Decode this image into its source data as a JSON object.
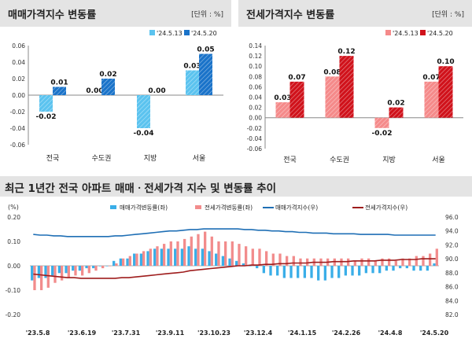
{
  "colors": {
    "sale_prev": "#5bc3ef",
    "sale_curr": "#1a73c9",
    "jeonse_prev": "#f58a8a",
    "jeonse_curr": "#d0121b",
    "ts_sale_bar": "#3aaee8",
    "ts_jeonse_bar": "#f28c8c",
    "ts_sale_line": "#1f6fb5",
    "ts_jeonse_line": "#9e1c1c",
    "panel_bg": "#e4e4e4"
  },
  "sale_panel": {
    "title": "매매가격지수 변동률",
    "unit": "[단위 : %]"
  },
  "jeonse_panel": {
    "title": "전세가격지수 변동률",
    "unit": "[단위 : %]"
  },
  "timeseries": {
    "title": "최근 1년간 전국 아파트 매매ㆍ전세가격 지수 및 변동률 추이",
    "left_unit": "(%)"
  },
  "chart_data": [
    {
      "type": "bar",
      "title": "매매가격지수 변동률",
      "categories": [
        "전국",
        "수도권",
        "지방",
        "서울"
      ],
      "series": [
        {
          "name": "'24.5.13",
          "values": [
            -0.02,
            0.0,
            -0.04,
            0.03
          ]
        },
        {
          "name": "'24.5.20",
          "values": [
            0.01,
            0.02,
            0.0,
            0.05
          ]
        }
      ],
      "data_labels": [
        [
          "-0.02",
          "0.00",
          "-0.04",
          "0.03"
        ],
        [
          "0.01",
          "0.02",
          "0.00",
          "0.05"
        ]
      ],
      "ylim": [
        -0.06,
        0.06
      ],
      "yticks": [
        "0.06",
        "0.04",
        "0.02",
        "0.00",
        "-0.02",
        "-0.04",
        "-0.06"
      ],
      "legend": "top-right",
      "grid": false
    },
    {
      "type": "bar",
      "title": "전세가격지수 변동률",
      "categories": [
        "전국",
        "수도권",
        "지방",
        "서울"
      ],
      "series": [
        {
          "name": "'24.5.13",
          "values": [
            0.03,
            0.08,
            -0.02,
            0.07
          ]
        },
        {
          "name": "'24.5.20",
          "values": [
            0.07,
            0.12,
            0.02,
            0.1
          ]
        }
      ],
      "data_labels": [
        [
          "0.03",
          "0.08",
          "-0.02",
          "0.07"
        ],
        [
          "0.07",
          "0.12",
          "0.02",
          "0.10"
        ]
      ],
      "ylim": [
        -0.06,
        0.14
      ],
      "yticks": [
        "0.14",
        "0.12",
        "0.10",
        "0.08",
        "0.06",
        "0.04",
        "0.02",
        "0.00",
        "-0.02",
        "-0.04",
        "-0.06"
      ],
      "legend": "top-right",
      "grid": false
    },
    {
      "type": "bar",
      "title": "최근 1년간 전국 아파트 매매ㆍ전세가격 지수 및 변동률 추이",
      "x_labels": [
        "'23.5.8",
        "'23.6.19",
        "'23.7.31",
        "'23.9.11",
        "'23.10.23",
        "'23.12.4",
        "'24.1.15",
        "'24.2.26",
        "'24.4.8",
        "'24.5.20"
      ],
      "left_axis": {
        "unit": "(%)",
        "ylim": [
          -0.2,
          0.2
        ],
        "ticks": [
          "0.20",
          "0.10",
          "0.00",
          "-0.10",
          "-0.20"
        ]
      },
      "right_axis": {
        "ylim": [
          82,
          96
        ],
        "ticks": [
          "96.0",
          "94.0",
          "92.0",
          "90.0",
          "88.0",
          "86.0",
          "84.0",
          "82.0"
        ]
      },
      "legend": [
        "매매가격변동률(좌)",
        "전세가격변동률(좌)",
        "매매가격지수(우)",
        "전세가격지수(우)"
      ],
      "series": [
        {
          "name": "매매가격변동률(좌)",
          "axis": "left",
          "kind": "bar",
          "values": [
            -0.06,
            -0.05,
            -0.05,
            -0.04,
            -0.03,
            -0.03,
            -0.02,
            -0.02,
            -0.01,
            -0.01,
            0.0,
            0.0,
            0.02,
            0.03,
            0.03,
            0.05,
            0.05,
            0.06,
            0.07,
            0.07,
            0.07,
            0.07,
            0.07,
            0.08,
            0.07,
            0.07,
            0.06,
            0.05,
            0.04,
            0.03,
            0.02,
            0.01,
            0.0,
            -0.01,
            -0.03,
            -0.04,
            -0.04,
            -0.05,
            -0.05,
            -0.05,
            -0.05,
            -0.05,
            -0.06,
            -0.06,
            -0.05,
            -0.05,
            -0.04,
            -0.04,
            -0.04,
            -0.03,
            -0.03,
            -0.03,
            -0.02,
            -0.02,
            -0.01,
            -0.01,
            -0.02,
            -0.02,
            -0.02,
            0.01
          ]
        },
        {
          "name": "전세가격변동률(좌)",
          "axis": "left",
          "kind": "bar",
          "values": [
            -0.1,
            -0.1,
            -0.09,
            -0.07,
            -0.06,
            -0.05,
            -0.04,
            -0.04,
            -0.03,
            -0.02,
            -0.01,
            0.0,
            0.01,
            0.03,
            0.04,
            0.05,
            0.06,
            0.07,
            0.08,
            0.09,
            0.1,
            0.1,
            0.11,
            0.12,
            0.13,
            0.14,
            0.12,
            0.1,
            0.1,
            0.1,
            0.09,
            0.08,
            0.07,
            0.07,
            0.06,
            0.05,
            0.05,
            0.04,
            0.04,
            0.03,
            0.03,
            0.03,
            0.03,
            0.03,
            0.03,
            0.03,
            0.03,
            0.02,
            0.03,
            0.03,
            0.02,
            0.03,
            0.03,
            0.02,
            0.03,
            0.03,
            0.04,
            0.04,
            0.05,
            0.07
          ]
        },
        {
          "name": "매매가격지수(우)",
          "axis": "right",
          "kind": "line",
          "values": [
            93.5,
            93.4,
            93.4,
            93.3,
            93.3,
            93.2,
            93.2,
            93.2,
            93.2,
            93.2,
            93.2,
            93.2,
            93.3,
            93.3,
            93.4,
            93.5,
            93.6,
            93.7,
            93.8,
            93.9,
            94.0,
            94.0,
            94.1,
            94.2,
            94.2,
            94.3,
            94.3,
            94.3,
            94.3,
            94.3,
            94.3,
            94.2,
            94.2,
            94.1,
            94.1,
            94.0,
            94.0,
            93.9,
            93.9,
            93.8,
            93.8,
            93.7,
            93.7,
            93.7,
            93.6,
            93.6,
            93.6,
            93.6,
            93.5,
            93.5,
            93.5,
            93.5,
            93.5,
            93.4,
            93.4,
            93.4,
            93.4,
            93.4,
            93.4,
            93.4
          ]
        },
        {
          "name": "전세가격지수(우)",
          "axis": "right",
          "kind": "line",
          "values": [
            87.8,
            87.7,
            87.6,
            87.5,
            87.4,
            87.3,
            87.3,
            87.2,
            87.2,
            87.2,
            87.2,
            87.2,
            87.2,
            87.3,
            87.3,
            87.4,
            87.5,
            87.6,
            87.7,
            87.8,
            87.9,
            88.0,
            88.1,
            88.3,
            88.4,
            88.5,
            88.6,
            88.7,
            88.8,
            88.9,
            89.0,
            89.0,
            89.1,
            89.1,
            89.2,
            89.2,
            89.3,
            89.3,
            89.4,
            89.4,
            89.4,
            89.5,
            89.5,
            89.5,
            89.6,
            89.6,
            89.6,
            89.7,
            89.7,
            89.7,
            89.7,
            89.8,
            89.8,
            89.8,
            89.9,
            89.9,
            89.9,
            90.0,
            90.0,
            90.0
          ]
        }
      ]
    }
  ]
}
